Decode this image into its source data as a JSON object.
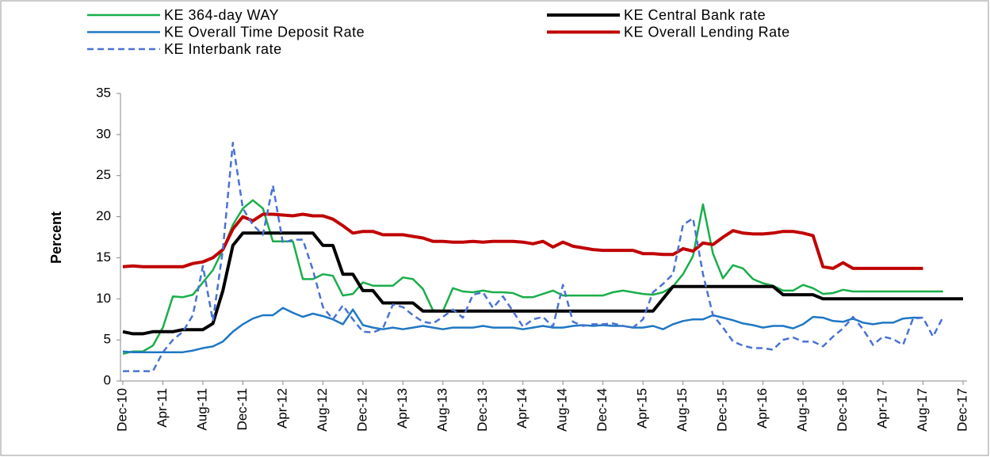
{
  "chart_data": {
    "type": "line",
    "y_label": "Percent",
    "legend": "top",
    "ylim": [
      0,
      35
    ],
    "yticks": [
      0,
      5,
      10,
      15,
      20,
      25,
      30,
      35
    ],
    "categories": [
      "Dec-10",
      null,
      null,
      null,
      "Apr-11",
      null,
      null,
      null,
      "Aug-11",
      null,
      null,
      null,
      "Dec-11",
      null,
      null,
      null,
      "Apr-12",
      null,
      null,
      null,
      "Aug-12",
      null,
      null,
      null,
      "Dec-12",
      null,
      null,
      null,
      "Apr-13",
      null,
      null,
      null,
      "Aug-13",
      null,
      null,
      null,
      "Dec-13",
      null,
      null,
      null,
      "Apr-14",
      null,
      null,
      null,
      "Aug-14",
      null,
      null,
      null,
      "Dec-14",
      null,
      null,
      null,
      "Apr-15",
      null,
      null,
      null,
      "Aug-15",
      null,
      null,
      null,
      "Dec-15",
      null,
      null,
      null,
      "Apr-16",
      null,
      null,
      null,
      "Aug-16",
      null,
      null,
      null,
      "Dec-16",
      null,
      null,
      null,
      "Apr-17",
      null,
      null,
      null,
      "Aug-17",
      null,
      null,
      null,
      "Dec-17"
    ],
    "series": [
      {
        "name": "KE 364-day WAY",
        "color": "#1aae4a",
        "width": 2.5,
        "dash": false,
        "values": [
          3.3,
          3.6,
          3.6,
          4.3,
          6.5,
          10.3,
          10.2,
          10.5,
          12,
          13.5,
          16,
          19,
          21,
          22,
          21,
          17,
          17,
          17,
          12.4,
          12.4,
          13,
          12.8,
          10.4,
          10.6,
          12,
          11.6,
          11.6,
          11.6,
          12.6,
          12.4,
          11.2,
          8.6,
          8.5,
          11.3,
          10.9,
          10.8,
          11,
          10.8,
          10.8,
          10.7,
          10.2,
          10.2,
          10.6,
          11,
          10.4,
          10.4,
          10.4,
          10.4,
          10.4,
          10.8,
          11,
          10.8,
          10.6,
          10.5,
          10.8,
          11.5,
          13,
          15.2,
          21.5,
          15.5,
          12.5,
          14.1,
          13.7,
          12.4,
          11.9,
          11.6,
          11,
          11,
          11.7,
          11.3,
          10.6,
          10.7,
          11.1,
          10.9,
          10.9,
          10.9,
          10.9,
          10.9,
          10.9,
          10.9,
          10.9,
          10.9,
          10.9,
          null,
          null
        ]
      },
      {
        "name": "KE Central Bank rate",
        "color": "#000000",
        "width": 4,
        "dash": false,
        "values": [
          6,
          5.75,
          5.75,
          6,
          6,
          6,
          6.25,
          6.25,
          6.25,
          7,
          11,
          16.5,
          18,
          18,
          18,
          18,
          18,
          18,
          18,
          18,
          16.5,
          16.5,
          13,
          13,
          11,
          11,
          9.5,
          9.5,
          9.5,
          9.5,
          8.5,
          8.5,
          8.5,
          8.5,
          8.5,
          8.5,
          8.5,
          8.5,
          8.5,
          8.5,
          8.5,
          8.5,
          8.5,
          8.5,
          8.5,
          8.5,
          8.5,
          8.5,
          8.5,
          8.5,
          8.5,
          8.5,
          8.5,
          8.5,
          10,
          11.5,
          11.5,
          11.5,
          11.5,
          11.5,
          11.5,
          11.5,
          11.5,
          11.5,
          11.5,
          11.5,
          10.5,
          10.5,
          10.5,
          10.5,
          10,
          10,
          10,
          10,
          10,
          10,
          10,
          10,
          10,
          10,
          10,
          10,
          10,
          10,
          10
        ]
      },
      {
        "name": "KE Overall Time Deposit Rate",
        "color": "#1f77c4",
        "width": 2.5,
        "dash": false,
        "values": [
          3.6,
          3.5,
          3.5,
          3.5,
          3.5,
          3.5,
          3.5,
          3.7,
          4,
          4.2,
          4.8,
          6,
          6.9,
          7.6,
          8,
          8,
          8.9,
          8.3,
          7.8,
          8.2,
          7.9,
          7.5,
          6.9,
          8.7,
          6.8,
          6.5,
          6.3,
          6.5,
          6.3,
          6.5,
          6.7,
          6.5,
          6.3,
          6.5,
          6.5,
          6.5,
          6.7,
          6.5,
          6.5,
          6.5,
          6.3,
          6.5,
          6.7,
          6.5,
          6.5,
          6.7,
          6.8,
          6.7,
          6.8,
          6.7,
          6.7,
          6.5,
          6.5,
          6.7,
          6.3,
          6.9,
          7.3,
          7.5,
          7.5,
          8,
          7.7,
          7.4,
          7,
          6.8,
          6.5,
          6.7,
          6.7,
          6.4,
          6.9,
          7.8,
          7.7,
          7.3,
          7.2,
          7.6,
          7.1,
          6.9,
          7.1,
          7.1,
          7.6,
          7.7,
          7.7,
          null,
          null,
          null,
          null
        ]
      },
      {
        "name": "KE Overall Lending Rate",
        "color": "#c00000",
        "width": 4,
        "dash": false,
        "values": [
          13.9,
          14,
          13.9,
          13.9,
          13.9,
          13.9,
          13.9,
          14.3,
          14.5,
          15,
          16,
          18.5,
          20,
          19.5,
          20.3,
          20.3,
          20.2,
          20.1,
          20.3,
          20.1,
          20.1,
          19.7,
          18.9,
          18,
          18.2,
          18.2,
          17.8,
          17.8,
          17.8,
          17.6,
          17.4,
          17,
          17,
          16.9,
          16.9,
          17,
          16.9,
          17,
          17,
          17,
          16.9,
          16.7,
          17,
          16.3,
          16.9,
          16.4,
          16.2,
          16,
          15.9,
          15.9,
          15.9,
          15.9,
          15.5,
          15.5,
          15.4,
          15.4,
          16.1,
          15.8,
          16.8,
          16.6,
          17.5,
          18.3,
          18,
          17.9,
          17.9,
          18,
          18.2,
          18.2,
          18,
          17.7,
          13.9,
          13.7,
          14.4,
          13.7,
          13.7,
          13.7,
          13.7,
          13.7,
          13.7,
          13.7,
          13.7,
          null,
          null,
          null,
          null
        ]
      },
      {
        "name": "KE Interbank rate",
        "color": "#4a72d4",
        "width": 2.5,
        "dash": true,
        "values": [
          1.2,
          1.2,
          1.2,
          1.2,
          3.5,
          5,
          6,
          8,
          14,
          7.3,
          16,
          29,
          21,
          19,
          17.8,
          23.8,
          16.8,
          17.2,
          17.2,
          13.5,
          9,
          7.5,
          9.2,
          7.5,
          6,
          5.9,
          6.4,
          9.3,
          9,
          8,
          7.2,
          7,
          7.8,
          8.7,
          7.7,
          10.5,
          10.8,
          8.9,
          10.3,
          8.5,
          6.6,
          7.5,
          7.8,
          6.6,
          11.7,
          7.2,
          6.7,
          6.9,
          6.9,
          7,
          6.7,
          6.5,
          7.5,
          10.8,
          11.8,
          13,
          19,
          19.8,
          13,
          8,
          6.5,
          4.8,
          4.3,
          4,
          4,
          3.8,
          5,
          5.3,
          4.8,
          4.8,
          4.2,
          5.4,
          6.4,
          7.8,
          6.3,
          4.4,
          5.4,
          5.1,
          4.4,
          7.6,
          7.7,
          5.4,
          7.8,
          null,
          null
        ]
      }
    ]
  }
}
